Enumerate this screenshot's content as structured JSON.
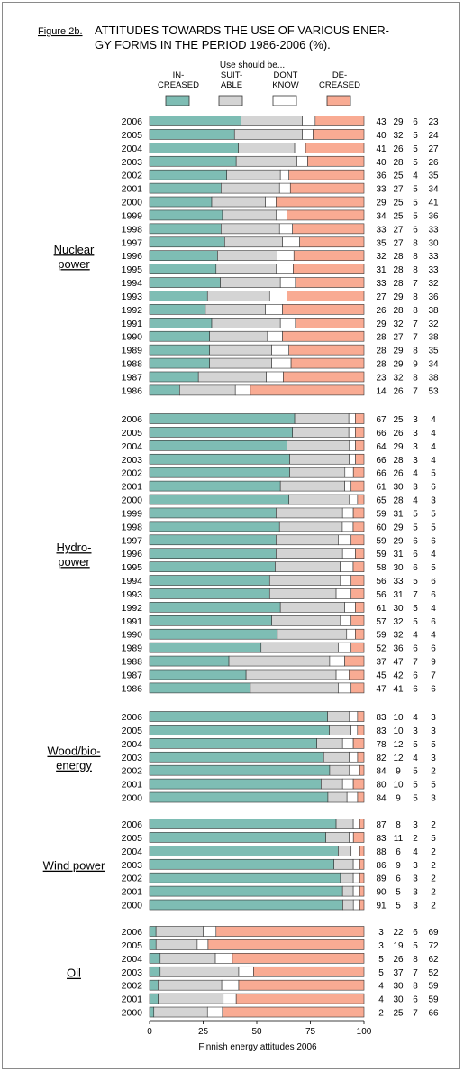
{
  "figure_label": "Figure 2b.",
  "title_lines": [
    "ATTITUDES TOWARDS THE USE OF VARIOUS ENER-",
    "GY FORMS IN THE PERIOD 1986-2006 (%)."
  ],
  "colors": {
    "increased": "#7ebdb4",
    "suitable": "#d4d4d4",
    "dont_know": "#ffffff",
    "decreased": "#f9ab93",
    "border": "#333333"
  },
  "chart_data": {
    "type": "bar",
    "stacked": true,
    "orientation": "horizontal",
    "title": "ATTITUDES TOWARDS THE USE OF VARIOUS ENERGY FORMS IN THE PERIOD 1986-2006 (%).",
    "xlabel": "Finnish energy attitudes 2006",
    "xlim": [
      0,
      100
    ],
    "xticks": [
      0,
      25,
      50,
      75,
      100
    ],
    "legend_title": "Use should be...",
    "legend": [
      {
        "key": "increased",
        "lines": [
          "IN-",
          "CREASED"
        ]
      },
      {
        "key": "suitable",
        "lines": [
          "SUIT-",
          "ABLE"
        ]
      },
      {
        "key": "dont_know",
        "lines": [
          "DONT",
          "KNOW"
        ]
      },
      {
        "key": "decreased",
        "lines": [
          "DE-",
          "CREASED"
        ]
      }
    ],
    "groups": [
      {
        "lines": [
          "Nuclear",
          "power"
        ],
        "rows": [
          {
            "year": "2006",
            "values": [
              43,
              29,
              6,
              23
            ]
          },
          {
            "year": "2005",
            "values": [
              40,
              32,
              5,
              24
            ]
          },
          {
            "year": "2004",
            "values": [
              41,
              26,
              5,
              27
            ]
          },
          {
            "year": "2003",
            "values": [
              40,
              28,
              5,
              26
            ]
          },
          {
            "year": "2002",
            "values": [
              36,
              25,
              4,
              35
            ]
          },
          {
            "year": "2001",
            "values": [
              33,
              27,
              5,
              34
            ]
          },
          {
            "year": "2000",
            "values": [
              29,
              25,
              5,
              41
            ]
          },
          {
            "year": "1999",
            "values": [
              34,
              25,
              5,
              36
            ]
          },
          {
            "year": "1998",
            "values": [
              33,
              27,
              6,
              33
            ]
          },
          {
            "year": "1997",
            "values": [
              35,
              27,
              8,
              30
            ]
          },
          {
            "year": "1996",
            "values": [
              32,
              28,
              8,
              33
            ]
          },
          {
            "year": "1995",
            "values": [
              31,
              28,
              8,
              33
            ]
          },
          {
            "year": "1994",
            "values": [
              33,
              28,
              7,
              32
            ]
          },
          {
            "year": "1993",
            "values": [
              27,
              29,
              8,
              36
            ]
          },
          {
            "year": "1992",
            "values": [
              26,
              28,
              8,
              38
            ]
          },
          {
            "year": "1991",
            "values": [
              29,
              32,
              7,
              32
            ]
          },
          {
            "year": "1990",
            "values": [
              28,
              27,
              7,
              38
            ]
          },
          {
            "year": "1989",
            "values": [
              28,
              29,
              8,
              35
            ]
          },
          {
            "year": "1988",
            "values": [
              28,
              29,
              9,
              34
            ]
          },
          {
            "year": "1987",
            "values": [
              23,
              32,
              8,
              38
            ]
          },
          {
            "year": "1986",
            "values": [
              14,
              26,
              7,
              53
            ]
          }
        ]
      },
      {
        "lines": [
          "Hydro-",
          "power"
        ],
        "rows": [
          {
            "year": "2006",
            "values": [
              67,
              25,
              3,
              4
            ]
          },
          {
            "year": "2005",
            "values": [
              66,
              26,
              3,
              4
            ]
          },
          {
            "year": "2004",
            "values": [
              64,
              29,
              3,
              4
            ]
          },
          {
            "year": "2003",
            "values": [
              66,
              28,
              3,
              4
            ]
          },
          {
            "year": "2002",
            "values": [
              66,
              26,
              4,
              5
            ]
          },
          {
            "year": "2001",
            "values": [
              61,
              30,
              3,
              6
            ]
          },
          {
            "year": "2000",
            "values": [
              65,
              28,
              4,
              3
            ]
          },
          {
            "year": "1999",
            "values": [
              59,
              31,
              5,
              5
            ]
          },
          {
            "year": "1998",
            "values": [
              60,
              29,
              5,
              5
            ]
          },
          {
            "year": "1997",
            "values": [
              59,
              29,
              6,
              6
            ]
          },
          {
            "year": "1996",
            "values": [
              59,
              31,
              6,
              4
            ]
          },
          {
            "year": "1995",
            "values": [
              58,
              30,
              6,
              5
            ]
          },
          {
            "year": "1994",
            "values": [
              56,
              33,
              5,
              6
            ]
          },
          {
            "year": "1993",
            "values": [
              56,
              31,
              7,
              6
            ]
          },
          {
            "year": "1992",
            "values": [
              61,
              30,
              5,
              4
            ]
          },
          {
            "year": "1991",
            "values": [
              57,
              32,
              5,
              6
            ]
          },
          {
            "year": "1990",
            "values": [
              59,
              32,
              4,
              4
            ]
          },
          {
            "year": "1989",
            "values": [
              52,
              36,
              6,
              6
            ]
          },
          {
            "year": "1988",
            "values": [
              37,
              47,
              7,
              9
            ]
          },
          {
            "year": "1987",
            "values": [
              45,
              42,
              6,
              7
            ]
          },
          {
            "year": "1986",
            "values": [
              47,
              41,
              6,
              6
            ]
          }
        ]
      },
      {
        "lines": [
          "Wood/bio-",
          "energy"
        ],
        "rows": [
          {
            "year": "2006",
            "values": [
              83,
              10,
              4,
              3
            ]
          },
          {
            "year": "2005",
            "values": [
              83,
              10,
              3,
              3
            ]
          },
          {
            "year": "2004",
            "values": [
              78,
              12,
              5,
              5
            ]
          },
          {
            "year": "2003",
            "values": [
              82,
              12,
              4,
              3
            ]
          },
          {
            "year": "2002",
            "values": [
              84,
              9,
              5,
              2
            ]
          },
          {
            "year": "2001",
            "values": [
              80,
              10,
              5,
              5
            ]
          },
          {
            "year": "2000",
            "values": [
              84,
              9,
              5,
              3
            ]
          }
        ]
      },
      {
        "lines": [
          "Wind power"
        ],
        "rows": [
          {
            "year": "2006",
            "values": [
              87,
              8,
              3,
              2
            ]
          },
          {
            "year": "2005",
            "values": [
              83,
              11,
              2,
              5
            ]
          },
          {
            "year": "2004",
            "values": [
              88,
              6,
              4,
              2
            ]
          },
          {
            "year": "2003",
            "values": [
              86,
              9,
              3,
              2
            ]
          },
          {
            "year": "2002",
            "values": [
              89,
              6,
              3,
              2
            ]
          },
          {
            "year": "2001",
            "values": [
              90,
              5,
              3,
              2
            ]
          },
          {
            "year": "2000",
            "values": [
              91,
              5,
              3,
              2
            ]
          }
        ]
      },
      {
        "lines": [
          "Oil"
        ],
        "rows": [
          {
            "year": "2006",
            "values": [
              3,
              22,
              6,
              69
            ]
          },
          {
            "year": "2005",
            "values": [
              3,
              19,
              5,
              72
            ]
          },
          {
            "year": "2004",
            "values": [
              5,
              26,
              8,
              62
            ]
          },
          {
            "year": "2003",
            "values": [
              5,
              37,
              7,
              52
            ]
          },
          {
            "year": "2002",
            "values": [
              4,
              30,
              8,
              59
            ]
          },
          {
            "year": "2001",
            "values": [
              4,
              30,
              6,
              59
            ]
          },
          {
            "year": "2000",
            "values": [
              2,
              25,
              7,
              66
            ]
          }
        ]
      }
    ]
  }
}
